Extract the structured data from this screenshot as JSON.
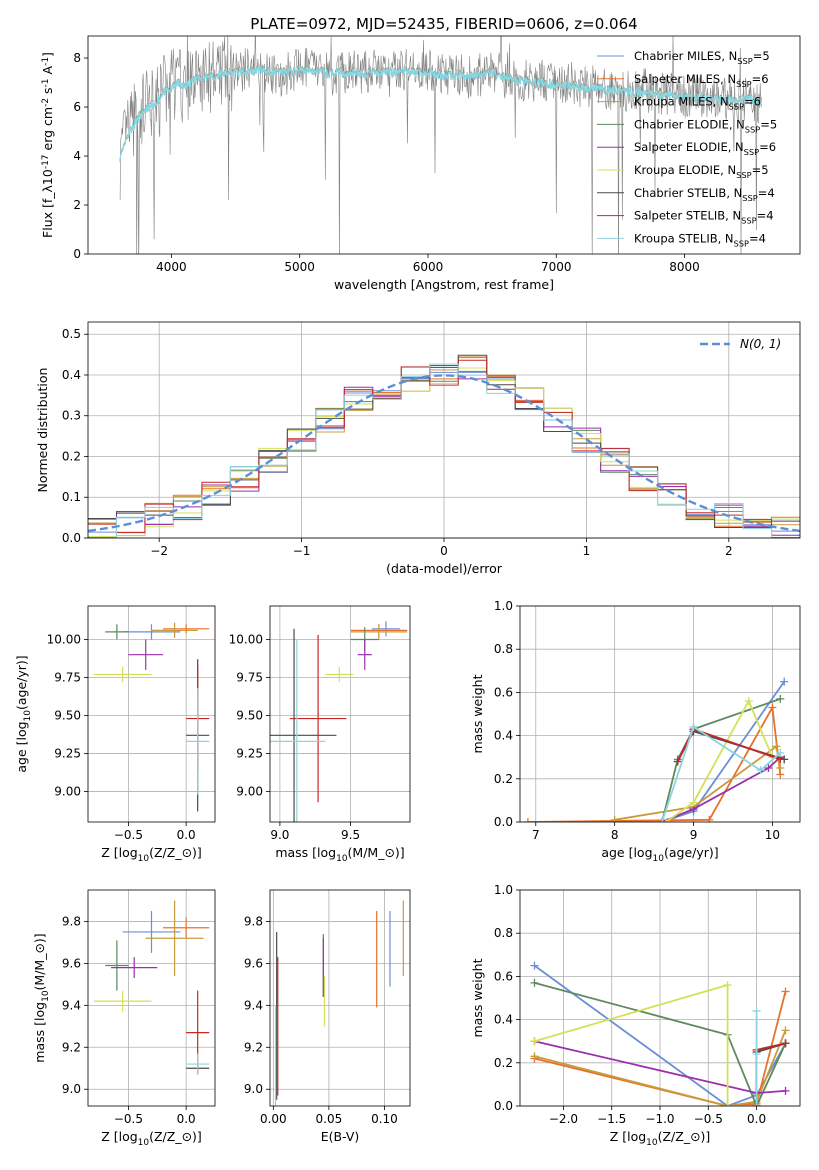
{
  "figure": {
    "title": "PLATE=0972, MJD=52435, FIBERID=0606, z=0.064"
  },
  "models": [
    {
      "name": "Chabrier MILES, N$_{SSP}$=5",
      "color": "#6b8fd6"
    },
    {
      "name": "Salpeter MILES, N$_{SSP}$=6",
      "color": "#e8722a"
    },
    {
      "name": "Kroupa MILES, N$_{SSP}$=6",
      "color": "#c89b3c"
    },
    {
      "name": "Chabrier ELODIE, N$_{SSP}$=5",
      "color": "#5e8a5e"
    },
    {
      "name": "Salpeter ELODIE, N$_{SSP}$=6",
      "color": "#9b2fae"
    },
    {
      "name": "Kroupa ELODIE, N$_{SSP}$=5",
      "color": "#d4e157"
    },
    {
      "name": "Chabrier STELIB, N$_{SSP}$=4",
      "color": "#4a4a4a"
    },
    {
      "name": "Salpeter STELIB, N$_{SSP}$=4",
      "color": "#c62828"
    },
    {
      "name": "Kroupa STELIB, N$_{SSP}$=4",
      "color": "#8fd3e0"
    }
  ],
  "chart_data": [
    {
      "id": "spectrum",
      "type": "line",
      "xlabel": "wavelength [Angstrom, rest frame]",
      "ylabel": "Flux [f_λ10^{-17} erg cm^{-2} s^{-1} A^{-1}]",
      "xlim": [
        3350,
        8900
      ],
      "ylim": [
        0,
        8.9
      ],
      "xticks": [
        4000,
        5000,
        6000,
        7000,
        8000
      ],
      "yticks": [
        0,
        2,
        4,
        6,
        8
      ],
      "grid": false,
      "legend": "top-right",
      "data_color": "#808080",
      "model_color": "#80deea",
      "data_x": [
        3600,
        3650,
        3700,
        3750,
        3800,
        3850,
        3900,
        3950,
        4000,
        4050,
        4100,
        4150,
        4200,
        4300,
        4400,
        4500,
        4600,
        4700,
        4800,
        4900,
        5000,
        5100,
        5200,
        5300,
        5400,
        5500,
        5600,
        5700,
        5800,
        5900,
        6000,
        6100,
        6200,
        6300,
        6400,
        6500,
        6600,
        6700,
        6800,
        6900,
        7000,
        7100,
        7200,
        7300,
        7400,
        7500,
        7600,
        7700,
        7800,
        7900,
        8000,
        8100,
        8200,
        8300,
        8400,
        8500,
        8600
      ],
      "data_y": [
        3.8,
        4.9,
        5.3,
        5.6,
        5.9,
        6.2,
        6.3,
        6.6,
        6.9,
        7.0,
        6.7,
        7.1,
        7.3,
        7.2,
        7.5,
        7.4,
        7.6,
        7.5,
        7.3,
        7.4,
        7.5,
        7.6,
        7.4,
        7.3,
        7.5,
        7.4,
        7.5,
        7.3,
        7.6,
        7.4,
        7.5,
        7.3,
        7.4,
        7.2,
        7.3,
        7.5,
        7.2,
        7.1,
        7.0,
        7.1,
        6.9,
        7.0,
        6.8,
        6.9,
        6.6,
        6.8,
        6.6,
        6.7,
        6.5,
        6.6,
        6.4,
        6.5,
        6.3,
        6.4,
        6.3,
        6.3,
        6.2
      ],
      "model_y": [
        3.9,
        4.8,
        5.2,
        5.6,
        5.9,
        6.1,
        6.3,
        6.6,
        6.8,
        7.0,
        6.8,
        7.0,
        7.2,
        7.2,
        7.4,
        7.4,
        7.5,
        7.5,
        7.4,
        7.4,
        7.5,
        7.5,
        7.4,
        7.4,
        7.4,
        7.4,
        7.4,
        7.4,
        7.5,
        7.4,
        7.4,
        7.3,
        7.3,
        7.3,
        7.3,
        7.4,
        7.2,
        7.1,
        7.0,
        7.0,
        6.9,
        6.9,
        6.8,
        6.8,
        6.7,
        6.7,
        6.6,
        6.6,
        6.5,
        6.5,
        6.4,
        6.4,
        6.4,
        6.3,
        6.3,
        6.3,
        6.2
      ]
    },
    {
      "id": "residuals",
      "type": "line",
      "xlabel": "(data-model)/error",
      "ylabel": "Normed distribution",
      "xlim": [
        -2.5,
        2.5
      ],
      "ylim": [
        0,
        0.53
      ],
      "xticks": [
        -2,
        -1,
        0,
        1,
        2
      ],
      "yticks": [
        0.0,
        0.1,
        0.2,
        0.3,
        0.4,
        0.5
      ],
      "grid": true,
      "legend": "top-right",
      "reference_label": "$\\mathcal{N}(0,1)$",
      "reference_color": "#5b8fd6",
      "bin_centers": [
        -2.4,
        -2.2,
        -2.0,
        -1.8,
        -1.6,
        -1.4,
        -1.2,
        -1.0,
        -0.8,
        -0.6,
        -0.4,
        -0.2,
        0.0,
        0.2,
        0.4,
        0.6,
        0.8,
        1.0,
        1.2,
        1.4,
        1.6,
        1.8,
        2.0,
        2.2,
        2.4
      ],
      "histogram_mean": [
        0.022,
        0.035,
        0.055,
        0.075,
        0.11,
        0.145,
        0.19,
        0.24,
        0.29,
        0.34,
        0.37,
        0.39,
        0.4,
        0.42,
        0.37,
        0.34,
        0.29,
        0.24,
        0.19,
        0.145,
        0.11,
        0.075,
        0.055,
        0.035,
        0.022
      ]
    },
    {
      "id": "age-vs-Z",
      "type": "scatter",
      "xlabel": "Z [log_{10}(Z/Z_⊙)]",
      "ylabel": "age  [log_{10}(age/yr)]",
      "xlim": [
        -0.85,
        0.25
      ],
      "ylim": [
        8.8,
        10.22
      ],
      "xticks": [
        -0.5,
        0.0
      ],
      "yticks": [
        9.0,
        9.25,
        9.5,
        9.75,
        10.0
      ],
      "grid": true,
      "points": [
        {
          "model": 0,
          "x": -0.3,
          "y": 10.05,
          "dx": 0.25,
          "dy": 0.05
        },
        {
          "model": 1,
          "x": 0.0,
          "y": 10.07,
          "dx": 0.2,
          "dy": 0.03
        },
        {
          "model": 2,
          "x": -0.1,
          "y": 10.06,
          "dx": 0.2,
          "dy": 0.05
        },
        {
          "model": 3,
          "x": -0.6,
          "y": 10.05,
          "dx": 0.1,
          "dy": 0.05
        },
        {
          "model": 4,
          "x": -0.35,
          "y": 9.9,
          "dx": 0.15,
          "dy": 0.1
        },
        {
          "model": 5,
          "x": -0.55,
          "y": 9.77,
          "dx": 0.25,
          "dy": 0.05
        },
        {
          "model": 6,
          "x": 0.1,
          "y": 9.37,
          "dx": 0.1,
          "dy": 0.5
        },
        {
          "model": 7,
          "x": 0.1,
          "y": 9.48,
          "dx": 0.1,
          "dy": 0.35
        },
        {
          "model": 8,
          "x": 0.1,
          "y": 9.33,
          "dx": 0.1,
          "dy": 0.35
        }
      ]
    },
    {
      "id": "age-vs-mass",
      "type": "scatter",
      "xlabel": "mass [log_{10}(M/M_⊙)]",
      "ylabel": "",
      "xlim": [
        8.93,
        9.92
      ],
      "ylim": [
        8.8,
        10.22
      ],
      "xticks": [
        9.0,
        9.5
      ],
      "yticks": [
        9.0,
        9.25,
        9.5,
        9.75,
        10.0
      ],
      "grid": true,
      "points": [
        {
          "model": 0,
          "x": 9.75,
          "y": 10.07,
          "dx": 0.1,
          "dy": 0.05
        },
        {
          "model": 1,
          "x": 9.7,
          "y": 10.06,
          "dx": 0.2,
          "dy": 0.04
        },
        {
          "model": 2,
          "x": 9.7,
          "y": 10.05,
          "dx": 0.2,
          "dy": 0.05
        },
        {
          "model": 3,
          "x": 9.6,
          "y": 10.0,
          "dx": 0.1,
          "dy": 0.08
        },
        {
          "model": 4,
          "x": 9.6,
          "y": 9.9,
          "dx": 0.05,
          "dy": 0.1
        },
        {
          "model": 5,
          "x": 9.42,
          "y": 9.77,
          "dx": 0.1,
          "dy": 0.05
        },
        {
          "model": 6,
          "x": 9.1,
          "y": 9.37,
          "dx": 0.3,
          "dy": 0.7
        },
        {
          "model": 7,
          "x": 9.27,
          "y": 9.48,
          "dx": 0.2,
          "dy": 0.55
        },
        {
          "model": 8,
          "x": 9.12,
          "y": 9.33,
          "dx": 0.2,
          "dy": 0.67
        }
      ]
    },
    {
      "id": "weight-vs-age",
      "type": "line",
      "xlabel": "age  [log_{10}(age/yr)]",
      "ylabel": "mass weight",
      "xlim": [
        6.8,
        10.35
      ],
      "ylim": [
        0,
        1.0
      ],
      "xticks": [
        7,
        8,
        9,
        10
      ],
      "yticks": [
        0.0,
        0.2,
        0.4,
        0.6,
        0.8,
        1.0
      ],
      "grid": true,
      "series": [
        {
          "model": 0,
          "x": [
            8.6,
            9.0,
            10.15
          ],
          "y": [
            0.0,
            0.05,
            0.65
          ]
        },
        {
          "model": 1,
          "x": [
            6.9,
            9.2,
            10.0,
            10.1
          ],
          "y": [
            0.0,
            0.01,
            0.53,
            0.22
          ]
        },
        {
          "model": 2,
          "x": [
            8.0,
            9.0,
            10.05,
            10.1
          ],
          "y": [
            0.01,
            0.07,
            0.35,
            0.25
          ]
        },
        {
          "model": 3,
          "x": [
            8.6,
            8.8,
            9.0,
            10.1
          ],
          "y": [
            0.0,
            0.29,
            0.43,
            0.57
          ]
        },
        {
          "model": 4,
          "x": [
            8.6,
            9.0,
            9.95,
            10.1
          ],
          "y": [
            0.0,
            0.06,
            0.25,
            0.3
          ]
        },
        {
          "model": 5,
          "x": [
            8.65,
            9.0,
            9.7,
            10.0
          ],
          "y": [
            0.0,
            0.09,
            0.56,
            0.3
          ]
        },
        {
          "model": 6,
          "x": [
            8.8,
            9.0,
            10.15
          ],
          "y": [
            0.28,
            0.42,
            0.29
          ]
        },
        {
          "model": 7,
          "x": [
            8.8,
            9.0,
            10.1
          ],
          "y": [
            0.28,
            0.43,
            0.29
          ]
        },
        {
          "model": 8,
          "x": [
            8.6,
            9.0,
            9.85,
            10.1
          ],
          "y": [
            0.0,
            0.44,
            0.24,
            0.32
          ]
        }
      ]
    },
    {
      "id": "mass-vs-Z",
      "type": "scatter",
      "xlabel": "Z [log_{10}(Z/Z_⊙)]",
      "ylabel": "mass [log_{10}(M/M_⊙)]",
      "xlim": [
        -0.85,
        0.25
      ],
      "ylim": [
        8.92,
        9.95
      ],
      "xticks": [
        -0.5,
        0.0
      ],
      "yticks": [
        9.0,
        9.2,
        9.4,
        9.6,
        9.8
      ],
      "grid": true,
      "points": [
        {
          "model": 0,
          "x": -0.3,
          "y": 9.75,
          "dx": 0.25,
          "dy": 0.1
        },
        {
          "model": 1,
          "x": 0.0,
          "y": 9.77,
          "dx": 0.2,
          "dy": 0.05
        },
        {
          "model": 2,
          "x": -0.1,
          "y": 9.72,
          "dx": 0.25,
          "dy": 0.18
        },
        {
          "model": 3,
          "x": -0.6,
          "y": 9.59,
          "dx": 0.1,
          "dy": 0.12
        },
        {
          "model": 4,
          "x": -0.45,
          "y": 9.58,
          "dx": 0.2,
          "dy": 0.05
        },
        {
          "model": 5,
          "x": -0.55,
          "y": 9.42,
          "dx": 0.25,
          "dy": 0.05
        },
        {
          "model": 6,
          "x": 0.1,
          "y": 9.1,
          "dx": 0.1,
          "dy": 0.0
        },
        {
          "model": 7,
          "x": 0.1,
          "y": 9.27,
          "dx": 0.1,
          "dy": 0.2
        },
        {
          "model": 8,
          "x": 0.1,
          "y": 9.12,
          "dx": 0.1,
          "dy": 0.05
        }
      ]
    },
    {
      "id": "mass-vs-EBV",
      "type": "scatter",
      "xlabel": "E(B-V)",
      "ylabel": "",
      "xlim": [
        -0.003,
        0.123
      ],
      "ylim": [
        8.92,
        9.95
      ],
      "xticks": [
        0.0,
        0.05,
        0.1
      ],
      "yticks": [
        9.0,
        9.2,
        9.4,
        9.6,
        9.8
      ],
      "grid": true,
      "points": [
        {
          "model": 0,
          "x": 0.105,
          "y": 9.67,
          "dx": 0.0,
          "dy": 0.18
        },
        {
          "model": 1,
          "x": 0.093,
          "y": 9.62,
          "dx": 0.0,
          "dy": 0.23
        },
        {
          "model": 2,
          "x": 0.117,
          "y": 9.72,
          "dx": 0.0,
          "dy": 0.18
        },
        {
          "model": 3,
          "x": 0.045,
          "y": 9.59,
          "dx": 0.0,
          "dy": 0.15
        },
        {
          "model": 4,
          "x": 0.045,
          "y": 9.58,
          "dx": 0.0,
          "dy": 0.14
        },
        {
          "model": 5,
          "x": 0.046,
          "y": 9.42,
          "dx": 0.0,
          "dy": 0.12
        },
        {
          "model": 6,
          "x": 0.003,
          "y": 9.35,
          "dx": 0.0,
          "dy": 0.4
        },
        {
          "model": 7,
          "x": 0.004,
          "y": 9.3,
          "dx": 0.0,
          "dy": 0.33
        },
        {
          "model": 8,
          "x": 0.002,
          "y": 9.15,
          "dx": 0.0,
          "dy": 0.25
        }
      ]
    },
    {
      "id": "weight-vs-Z",
      "type": "line",
      "xlabel": "Z [log_{10}(Z/Z_⊙)]",
      "ylabel": "mass weight",
      "xlim": [
        -2.45,
        0.45
      ],
      "ylim": [
        0,
        1.0
      ],
      "xticks": [
        -2.0,
        -1.5,
        -1.0,
        -0.5,
        0.0
      ],
      "yticks": [
        0.0,
        0.2,
        0.4,
        0.6,
        0.8,
        1.0
      ],
      "grid": true,
      "series": [
        {
          "model": 0,
          "x": [
            -2.3,
            -0.3,
            0.0,
            0.3
          ],
          "y": [
            0.65,
            0.0,
            0.05,
            0.29
          ]
        },
        {
          "model": 1,
          "x": [
            -2.3,
            -0.3,
            0.0,
            0.3
          ],
          "y": [
            0.22,
            0.0,
            0.01,
            0.53
          ]
        },
        {
          "model": 2,
          "x": [
            -2.3,
            -0.3,
            0.0,
            0.3
          ],
          "y": [
            0.23,
            0.0,
            0.02,
            0.35
          ]
        },
        {
          "model": 3,
          "x": [
            -2.3,
            -0.3,
            0.0,
            0.3
          ],
          "y": [
            0.57,
            0.33,
            0.0,
            0.29
          ]
        },
        {
          "model": 4,
          "x": [
            -2.3,
            0.0,
            0.3
          ],
          "y": [
            0.3,
            0.06,
            0.07
          ]
        },
        {
          "model": 5,
          "x": [
            -2.3,
            -0.3,
            -0.3,
            0.0
          ],
          "y": [
            0.3,
            0.56,
            0.0,
            0.0
          ]
        },
        {
          "model": 6,
          "x": [
            0.0,
            0.0,
            0.3
          ],
          "y": [
            0.0,
            0.25,
            0.29
          ]
        },
        {
          "model": 7,
          "x": [
            0.0,
            0.0,
            0.3
          ],
          "y": [
            0.0,
            0.26,
            0.29
          ]
        },
        {
          "model": 8,
          "x": [
            0.0,
            0.0,
            0.0
          ],
          "y": [
            0.44,
            0.0,
            0.24
          ]
        }
      ]
    }
  ]
}
